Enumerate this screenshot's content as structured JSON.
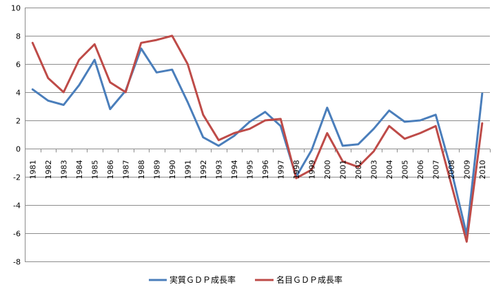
{
  "chart_data": {
    "type": "line",
    "title": "",
    "xlabel": "",
    "ylabel": "",
    "ylim": [
      -8,
      10
    ],
    "ytick_step": 2,
    "grid": true,
    "legend_position": "bottom",
    "categories": [
      "1981",
      "1982",
      "1983",
      "1984",
      "1985",
      "1986",
      "1987",
      "1988",
      "1989",
      "1990",
      "1991",
      "1992",
      "1993",
      "1994",
      "1995",
      "1996",
      "1997",
      "1998",
      "1999",
      "2000",
      "2001",
      "2002",
      "2003",
      "2004",
      "2005",
      "2006",
      "2007",
      "2008",
      "2009",
      "2010"
    ],
    "series": [
      {
        "name": "実質ＧＤＰ成長率",
        "color": "#4a7ebb",
        "values": [
          4.2,
          3.4,
          3.1,
          4.5,
          6.3,
          2.8,
          4.1,
          7.1,
          5.4,
          5.6,
          3.3,
          0.8,
          0.2,
          0.9,
          1.9,
          2.6,
          1.6,
          -2.0,
          -0.1,
          2.9,
          0.2,
          0.3,
          1.4,
          2.7,
          1.9,
          2.0,
          2.4,
          -1.5,
          -6.1,
          3.9
        ]
      },
      {
        "name": "名目ＧＤＰ成長率",
        "color": "#be4b48",
        "values": [
          7.5,
          5.0,
          4.0,
          6.3,
          7.4,
          4.7,
          4.0,
          7.5,
          7.7,
          8.0,
          6.0,
          2.4,
          0.6,
          1.1,
          1.4,
          2.0,
          2.1,
          -2.1,
          -1.5,
          1.1,
          -0.9,
          -1.3,
          -0.2,
          1.6,
          0.7,
          1.1,
          1.6,
          -2.5,
          -6.6,
          1.8
        ]
      }
    ],
    "yticks": [
      "-8",
      "-6",
      "-4",
      "-2",
      "0",
      "2",
      "4",
      "6",
      "8",
      "10"
    ]
  }
}
